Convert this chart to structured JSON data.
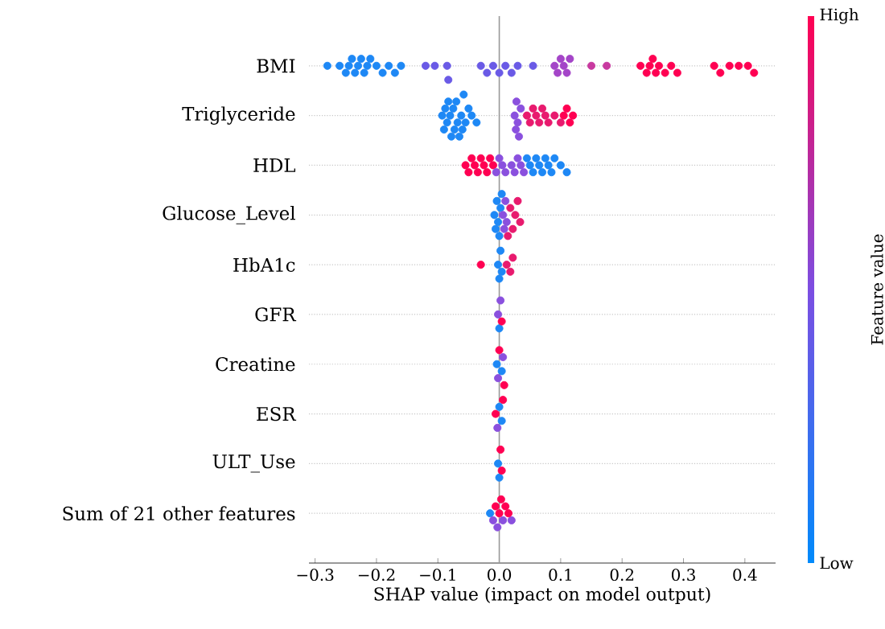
{
  "chart_data": {
    "type": "scatter",
    "orientation": "horizontal",
    "xlabel": "SHAP value (impact on model output)",
    "clabel": "Feature value",
    "marker": "circle",
    "grid": "y",
    "categories": [
      "BMI",
      "Triglyceride",
      "HDL",
      "Glucose_Level",
      "HbA1c",
      "GFR",
      "Creatine",
      "ESR",
      "ULT_Use",
      "Sum of 21 other features"
    ],
    "xlim": [
      -0.31,
      0.45
    ],
    "xticks": [
      {
        "value": -0.3,
        "label": "−0.3"
      },
      {
        "value": -0.2,
        "label": "−0.2"
      },
      {
        "value": -0.1,
        "label": "−0.1"
      },
      {
        "value": 0,
        "label": "0.0"
      },
      0.1,
      0.2,
      0.3,
      0.4
    ],
    "annotations": [
      "High",
      "Low"
    ],
    "ref_lines": [
      {
        "axis": "x",
        "value": 0,
        "color": "#999999"
      }
    ],
    "series": [
      {
        "color": "#1e88f5",
        "x": [
          "BMI",
          "BMI",
          "BMI",
          "BMI",
          "BMI",
          "BMI",
          "BMI",
          "BMI",
          "BMI",
          "BMI",
          "BMI",
          "BMI",
          "BMI",
          "BMI",
          "BMI",
          "BMI"
        ],
        "values": [
          -0.28,
          -0.26,
          -0.25,
          -0.245,
          -0.24,
          -0.235,
          -0.23,
          -0.225,
          -0.22,
          -0.215,
          -0.21,
          -0.2,
          -0.19,
          -0.18,
          -0.17,
          -0.16
        ]
      },
      {
        "color": "#6a5ae6",
        "x": [
          "BMI",
          "BMI",
          "BMI",
          "BMI",
          "BMI",
          "BMI",
          "BMI",
          "BMI",
          "BMI",
          "BMI",
          "BMI",
          "BMI"
        ],
        "values": [
          -0.12,
          -0.105,
          -0.085,
          -0.083,
          -0.03,
          -0.02,
          -0.01,
          0.0,
          0.01,
          0.02,
          0.03,
          0.055
        ]
      },
      {
        "color": "#a445c8",
        "x": [
          "BMI",
          "BMI",
          "BMI",
          "BMI",
          "BMI",
          "BMI"
        ],
        "values": [
          0.09,
          0.095,
          0.1,
          0.105,
          0.11,
          0.115
        ]
      },
      {
        "color": "#c83aa0",
        "x": [
          "BMI",
          "BMI"
        ],
        "values": [
          0.15,
          0.175
        ]
      },
      {
        "color": "#ff0052",
        "x": [
          "BMI",
          "BMI",
          "BMI",
          "BMI",
          "BMI",
          "BMI",
          "BMI",
          "BMI",
          "BMI",
          "BMI",
          "BMI",
          "BMI",
          "BMI",
          "BMI",
          "BMI"
        ],
        "values": [
          0.23,
          0.24,
          0.245,
          0.25,
          0.255,
          0.26,
          0.27,
          0.28,
          0.29,
          0.35,
          0.36,
          0.375,
          0.39,
          0.405,
          0.415
        ]
      },
      {
        "color": "#1e88f5",
        "x": [
          "Triglyceride",
          "Triglyceride",
          "Triglyceride",
          "Triglyceride",
          "Triglyceride",
          "Triglyceride",
          "Triglyceride",
          "Triglyceride",
          "Triglyceride",
          "Triglyceride",
          "Triglyceride",
          "Triglyceride",
          "Triglyceride",
          "Triglyceride",
          "Triglyceride",
          "Triglyceride",
          "Triglyceride",
          "Triglyceride",
          "Triglyceride"
        ],
        "values": [
          -0.093,
          -0.09,
          -0.088,
          -0.085,
          -0.083,
          -0.08,
          -0.078,
          -0.075,
          -0.073,
          -0.07,
          -0.068,
          -0.065,
          -0.062,
          -0.06,
          -0.058,
          -0.055,
          -0.05,
          -0.045,
          -0.037
        ]
      },
      {
        "color": "#8a50de",
        "x": [
          "Triglyceride",
          "Triglyceride",
          "Triglyceride",
          "Triglyceride",
          "Triglyceride",
          "Triglyceride"
        ],
        "values": [
          0.025,
          0.027,
          0.028,
          0.03,
          0.032,
          0.035
        ]
      },
      {
        "color": "#e81a6e",
        "x": [
          "Triglyceride",
          "Triglyceride",
          "Triglyceride",
          "Triglyceride",
          "Triglyceride",
          "Triglyceride",
          "Triglyceride",
          "Triglyceride",
          "Triglyceride",
          "Triglyceride"
        ],
        "values": [
          0.045,
          0.05,
          0.055,
          0.06,
          0.065,
          0.07,
          0.075,
          0.08,
          0.09,
          0.1
        ]
      },
      {
        "color": "#ff0052",
        "x": [
          "Triglyceride",
          "Triglyceride",
          "Triglyceride",
          "Triglyceride"
        ],
        "values": [
          0.105,
          0.11,
          0.115,
          0.12
        ]
      },
      {
        "color": "#ff0052",
        "x": [
          "HDL",
          "HDL",
          "HDL",
          "HDL",
          "HDL",
          "HDL",
          "HDL",
          "HDL",
          "HDL",
          "HDL"
        ],
        "values": [
          -0.055,
          -0.05,
          -0.045,
          -0.04,
          -0.035,
          -0.03,
          -0.025,
          -0.02,
          -0.015,
          -0.01
        ]
      },
      {
        "color": "#8a50de",
        "x": [
          "HDL",
          "HDL",
          "HDL",
          "HDL",
          "HDL",
          "HDL",
          "HDL",
          "HDL",
          "HDL"
        ],
        "values": [
          -0.005,
          0.0,
          0.005,
          0.01,
          0.02,
          0.025,
          0.03,
          0.035,
          0.04
        ]
      },
      {
        "color": "#1e88f5",
        "x": [
          "HDL",
          "HDL",
          "HDL",
          "HDL",
          "HDL",
          "HDL",
          "HDL",
          "HDL",
          "HDL",
          "HDL",
          "HDL",
          "HDL"
        ],
        "values": [
          0.045,
          0.05,
          0.055,
          0.06,
          0.065,
          0.07,
          0.075,
          0.08,
          0.085,
          0.09,
          0.1,
          0.11
        ]
      },
      {
        "color": "#1e88f5",
        "x": [
          "Glucose_Level",
          "Glucose_Level",
          "Glucose_Level",
          "Glucose_Level",
          "Glucose_Level",
          "Glucose_Level",
          "Glucose_Level"
        ],
        "values": [
          -0.008,
          -0.006,
          -0.004,
          -0.002,
          0.0,
          0.002,
          0.004
        ]
      },
      {
        "color": "#8a50de",
        "x": [
          "Glucose_Level",
          "Glucose_Level",
          "Glucose_Level",
          "Glucose_Level"
        ],
        "values": [
          0.006,
          0.008,
          0.01,
          0.012
        ]
      },
      {
        "color": "#e81a6e",
        "x": [
          "Glucose_Level",
          "Glucose_Level",
          "Glucose_Level",
          "Glucose_Level",
          "Glucose_Level",
          "Glucose_Level"
        ],
        "values": [
          0.014,
          0.018,
          0.022,
          0.026,
          0.03,
          0.034
        ]
      },
      {
        "color": "#ff0052",
        "x": [
          "HbA1c"
        ],
        "values": [
          -0.03
        ]
      },
      {
        "color": "#1e88f5",
        "x": [
          "HbA1c",
          "HbA1c",
          "HbA1c",
          "HbA1c"
        ],
        "values": [
          -0.002,
          0.0,
          0.002,
          0.004
        ]
      },
      {
        "color": "#e81a6e",
        "x": [
          "HbA1c",
          "HbA1c",
          "HbA1c"
        ],
        "values": [
          0.012,
          0.018,
          0.022
        ]
      },
      {
        "color": "#8a50de",
        "x": [
          "GFR",
          "GFR"
        ],
        "values": [
          -0.002,
          0.002
        ]
      },
      {
        "color": "#1e88f5",
        "x": [
          "GFR"
        ],
        "values": [
          0.0
        ]
      },
      {
        "color": "#ff0052",
        "x": [
          "GFR"
        ],
        "values": [
          0.004
        ]
      },
      {
        "color": "#1e88f5",
        "x": [
          "Creatine",
          "Creatine"
        ],
        "values": [
          -0.004,
          0.004
        ]
      },
      {
        "color": "#8a50de",
        "x": [
          "Creatine",
          "Creatine"
        ],
        "values": [
          -0.002,
          0.006
        ]
      },
      {
        "color": "#ff0052",
        "x": [
          "Creatine",
          "Creatine"
        ],
        "values": [
          0.0,
          0.008
        ]
      },
      {
        "color": "#ff0052",
        "x": [
          "ESR",
          "ESR"
        ],
        "values": [
          -0.006,
          0.006
        ]
      },
      {
        "color": "#8a50de",
        "x": [
          "ESR"
        ],
        "values": [
          -0.003
        ]
      },
      {
        "color": "#1e88f5",
        "x": [
          "ESR",
          "ESR"
        ],
        "values": [
          0.0,
          0.004
        ]
      },
      {
        "color": "#1e88f5",
        "x": [
          "ULT_Use",
          "ULT_Use"
        ],
        "values": [
          -0.002,
          0.0
        ]
      },
      {
        "color": "#ff0052",
        "x": [
          "ULT_Use",
          "ULT_Use"
        ],
        "values": [
          0.002,
          0.004
        ]
      },
      {
        "color": "#1e88f5",
        "x": [
          "Sum of 21 other features"
        ],
        "values": [
          -0.015
        ]
      },
      {
        "color": "#8a50de",
        "x": [
          "Sum of 21 other features",
          "Sum of 21 other features",
          "Sum of 21 other features",
          "Sum of 21 other features"
        ],
        "values": [
          -0.01,
          -0.003,
          0.006,
          0.02
        ]
      },
      {
        "color": "#ff0052",
        "x": [
          "Sum of 21 other features",
          "Sum of 21 other features",
          "Sum of 21 other features",
          "Sum of 21 other features",
          "Sum of 21 other features"
        ],
        "values": [
          -0.006,
          0.0,
          0.003,
          0.01,
          0.015
        ]
      }
    ]
  }
}
